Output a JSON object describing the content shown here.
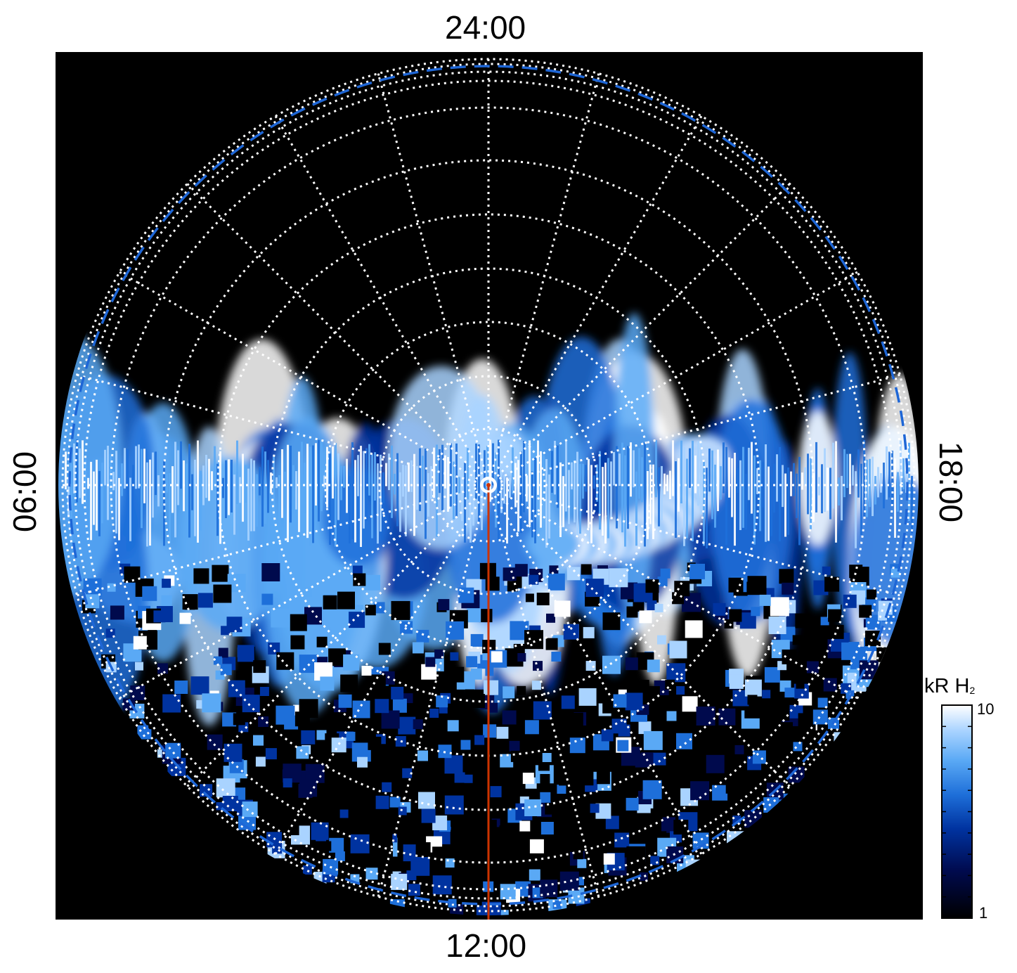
{
  "polar_map": {
    "labels": {
      "top": "24:00",
      "bottom": "12:00",
      "left": "06:00",
      "right": "18:00"
    }
  },
  "colorbar": {
    "unit": "kR H",
    "unit_subscript": "2",
    "max_label": "10",
    "min_label": "1",
    "scale": "log",
    "colors": [
      "#000000",
      "#000a4d",
      "#0033a0",
      "#1e6fd9",
      "#5aa9f5",
      "#a9d3ff",
      "#ffffff"
    ]
  },
  "colors": {
    "background": "#000000",
    "grid": "#ffffff",
    "boundary": "#1e66d6",
    "noon_meridian": "#cc3300"
  }
}
